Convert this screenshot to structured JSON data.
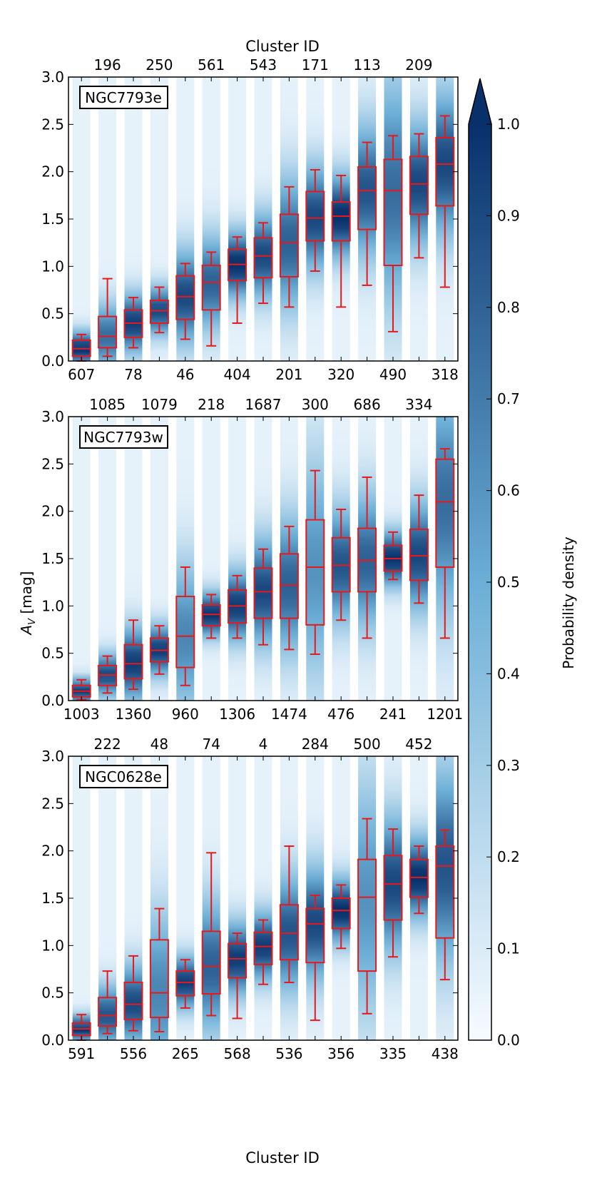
{
  "figure": {
    "top_axis_title": "Cluster ID",
    "bottom_axis_title": "Cluster ID",
    "ylabel": "A_V [mag]",
    "ylabel_main": "A",
    "ylabel_sub": "V",
    "ylabel_unit": " [mag]",
    "colorbar_label": "Probability density"
  },
  "colors": {
    "box": "#e41a1c",
    "cmap_low": "#f7fbff",
    "cmap_mid": "#6baed6",
    "cmap_high": "#08306b"
  },
  "colorbar": {
    "ticks": [
      "0.0",
      "0.1",
      "0.2",
      "0.3",
      "0.4",
      "0.5",
      "0.6",
      "0.7",
      "0.8",
      "0.9",
      "1.0"
    ],
    "extend": "max"
  },
  "chart_data": [
    {
      "type": "box_density",
      "galaxy": "NGC7793e",
      "ylim": [
        0,
        3
      ],
      "yticks": [
        "0.0",
        "0.5",
        "1.0",
        "1.5",
        "2.0",
        "2.5",
        "3.0"
      ],
      "bottom_ids": [
        "607",
        "78",
        "46",
        "404",
        "201",
        "320",
        "490",
        "318"
      ],
      "top_ids": [
        "196",
        "250",
        "561",
        "543",
        "171",
        "113",
        "209"
      ],
      "boxes": [
        {
          "wl": 0.0,
          "q1": 0.05,
          "med": 0.13,
          "q3": 0.22,
          "wh": 0.28,
          "strength": 0.95
        },
        {
          "wl": 0.05,
          "q1": 0.14,
          "med": 0.26,
          "q3": 0.47,
          "wh": 0.87,
          "strength": 0.7
        },
        {
          "wl": 0.14,
          "q1": 0.25,
          "med": 0.4,
          "q3": 0.54,
          "wh": 0.67,
          "strength": 0.9
        },
        {
          "wl": 0.3,
          "q1": 0.4,
          "med": 0.53,
          "q3": 0.64,
          "wh": 0.78,
          "strength": 0.85
        },
        {
          "wl": 0.23,
          "q1": 0.44,
          "med": 0.68,
          "q3": 0.9,
          "wh": 1.03,
          "strength": 0.85
        },
        {
          "wl": 0.16,
          "q1": 0.54,
          "med": 0.83,
          "q3": 1.01,
          "wh": 1.15,
          "strength": 0.75
        },
        {
          "wl": 0.4,
          "q1": 0.85,
          "med": 1.02,
          "q3": 1.18,
          "wh": 1.31,
          "strength": 0.95
        },
        {
          "wl": 0.61,
          "q1": 0.88,
          "med": 1.11,
          "q3": 1.3,
          "wh": 1.46,
          "strength": 0.85
        },
        {
          "wl": 0.57,
          "q1": 0.89,
          "med": 1.25,
          "q3": 1.55,
          "wh": 1.84,
          "strength": 0.75
        },
        {
          "wl": 0.95,
          "q1": 1.27,
          "med": 1.51,
          "q3": 1.79,
          "wh": 2.02,
          "strength": 0.85
        },
        {
          "wl": 0.57,
          "q1": 1.27,
          "med": 1.53,
          "q3": 1.68,
          "wh": 1.96,
          "strength": 0.95
        },
        {
          "wl": 0.8,
          "q1": 1.39,
          "med": 1.8,
          "q3": 2.05,
          "wh": 2.31,
          "strength": 0.8
        },
        {
          "wl": 0.31,
          "q1": 1.01,
          "med": 1.8,
          "q3": 2.13,
          "wh": 2.38,
          "strength": 0.7
        },
        {
          "wl": 1.09,
          "q1": 1.55,
          "med": 1.87,
          "q3": 2.16,
          "wh": 2.4,
          "strength": 0.85
        },
        {
          "wl": 0.78,
          "q1": 1.64,
          "med": 2.08,
          "q3": 2.36,
          "wh": 2.59,
          "strength": 0.85
        }
      ]
    },
    {
      "type": "box_density",
      "galaxy": "NGC7793w",
      "ylim": [
        0,
        3
      ],
      "yticks": [
        "0.0",
        "0.5",
        "1.0",
        "1.5",
        "2.0",
        "2.5",
        "3.0"
      ],
      "bottom_ids": [
        "1003",
        "1360",
        "960",
        "1306",
        "1474",
        "476",
        "241",
        "1201"
      ],
      "top_ids": [
        "1085",
        "1079",
        "218",
        "1687",
        "300",
        "686",
        "334"
      ],
      "boxes": [
        {
          "wl": 0.01,
          "q1": 0.04,
          "med": 0.1,
          "q3": 0.16,
          "wh": 0.22,
          "strength": 0.95
        },
        {
          "wl": 0.08,
          "q1": 0.16,
          "med": 0.27,
          "q3": 0.37,
          "wh": 0.47,
          "strength": 0.85
        },
        {
          "wl": 0.12,
          "q1": 0.23,
          "med": 0.39,
          "q3": 0.59,
          "wh": 0.85,
          "strength": 0.9
        },
        {
          "wl": 0.28,
          "q1": 0.41,
          "med": 0.53,
          "q3": 0.66,
          "wh": 0.79,
          "strength": 0.9
        },
        {
          "wl": 0.16,
          "q1": 0.35,
          "med": 0.68,
          "q3": 1.1,
          "wh": 1.41,
          "strength": 0.6
        },
        {
          "wl": 0.66,
          "q1": 0.79,
          "med": 0.91,
          "q3": 1.01,
          "wh": 1.12,
          "strength": 0.95
        },
        {
          "wl": 0.66,
          "q1": 0.82,
          "med": 1.0,
          "q3": 1.17,
          "wh": 1.32,
          "strength": 0.9
        },
        {
          "wl": 0.59,
          "q1": 0.87,
          "med": 1.15,
          "q3": 1.4,
          "wh": 1.6,
          "strength": 0.85
        },
        {
          "wl": 0.54,
          "q1": 0.87,
          "med": 1.22,
          "q3": 1.55,
          "wh": 1.84,
          "strength": 0.75
        },
        {
          "wl": 0.49,
          "q1": 0.8,
          "med": 1.41,
          "q3": 1.91,
          "wh": 2.43,
          "strength": 0.55
        },
        {
          "wl": 0.85,
          "q1": 1.15,
          "med": 1.43,
          "q3": 1.72,
          "wh": 2.02,
          "strength": 0.8
        },
        {
          "wl": 0.66,
          "q1": 1.15,
          "med": 1.48,
          "q3": 1.82,
          "wh": 2.36,
          "strength": 0.75
        },
        {
          "wl": 1.28,
          "q1": 1.37,
          "med": 1.5,
          "q3": 1.64,
          "wh": 1.78,
          "strength": 0.95
        },
        {
          "wl": 1.03,
          "q1": 1.27,
          "med": 1.53,
          "q3": 1.81,
          "wh": 2.17,
          "strength": 0.85
        },
        {
          "wl": 0.66,
          "q1": 1.41,
          "med": 2.1,
          "q3": 2.55,
          "wh": 2.66,
          "strength": 0.7
        }
      ]
    },
    {
      "type": "box_density",
      "galaxy": "NGC0628e",
      "ylim": [
        0,
        3
      ],
      "yticks": [
        "0.0",
        "0.5",
        "1.0",
        "1.5",
        "2.0",
        "2.5",
        "3.0"
      ],
      "bottom_ids": [
        "591",
        "556",
        "265",
        "568",
        "536",
        "356",
        "335",
        "438"
      ],
      "top_ids": [
        "222",
        "48",
        "74",
        "4",
        "284",
        "500",
        "452"
      ],
      "boxes": [
        {
          "wl": 0.0,
          "q1": 0.05,
          "med": 0.12,
          "q3": 0.18,
          "wh": 0.27,
          "strength": 0.95
        },
        {
          "wl": 0.07,
          "q1": 0.15,
          "med": 0.26,
          "q3": 0.45,
          "wh": 0.73,
          "strength": 0.8
        },
        {
          "wl": 0.1,
          "q1": 0.22,
          "med": 0.38,
          "q3": 0.61,
          "wh": 0.89,
          "strength": 0.85
        },
        {
          "wl": 0.09,
          "q1": 0.24,
          "med": 0.5,
          "q3": 1.06,
          "wh": 1.39,
          "strength": 0.6
        },
        {
          "wl": 0.34,
          "q1": 0.47,
          "med": 0.61,
          "q3": 0.73,
          "wh": 0.85,
          "strength": 0.9
        },
        {
          "wl": 0.26,
          "q1": 0.49,
          "med": 0.78,
          "q3": 1.15,
          "wh": 1.98,
          "strength": 0.75
        },
        {
          "wl": 0.23,
          "q1": 0.66,
          "med": 0.86,
          "q3": 1.02,
          "wh": 1.13,
          "strength": 0.9
        },
        {
          "wl": 0.59,
          "q1": 0.8,
          "med": 0.99,
          "q3": 1.14,
          "wh": 1.27,
          "strength": 0.9
        },
        {
          "wl": 0.61,
          "q1": 0.85,
          "med": 1.13,
          "q3": 1.43,
          "wh": 2.05,
          "strength": 0.8
        },
        {
          "wl": 0.21,
          "q1": 0.82,
          "med": 1.23,
          "q3": 1.39,
          "wh": 1.53,
          "strength": 0.85
        },
        {
          "wl": 0.97,
          "q1": 1.18,
          "med": 1.37,
          "q3": 1.5,
          "wh": 1.64,
          "strength": 0.95
        },
        {
          "wl": 0.28,
          "q1": 0.73,
          "med": 1.51,
          "q3": 1.91,
          "wh": 2.34,
          "strength": 0.55
        },
        {
          "wl": 0.88,
          "q1": 1.27,
          "med": 1.65,
          "q3": 1.95,
          "wh": 2.23,
          "strength": 0.85
        },
        {
          "wl": 1.34,
          "q1": 1.51,
          "med": 1.72,
          "q3": 1.91,
          "wh": 2.05,
          "strength": 0.95
        },
        {
          "wl": 0.64,
          "q1": 1.08,
          "med": 1.84,
          "q3": 2.05,
          "wh": 2.22,
          "strength": 0.8
        }
      ]
    }
  ]
}
